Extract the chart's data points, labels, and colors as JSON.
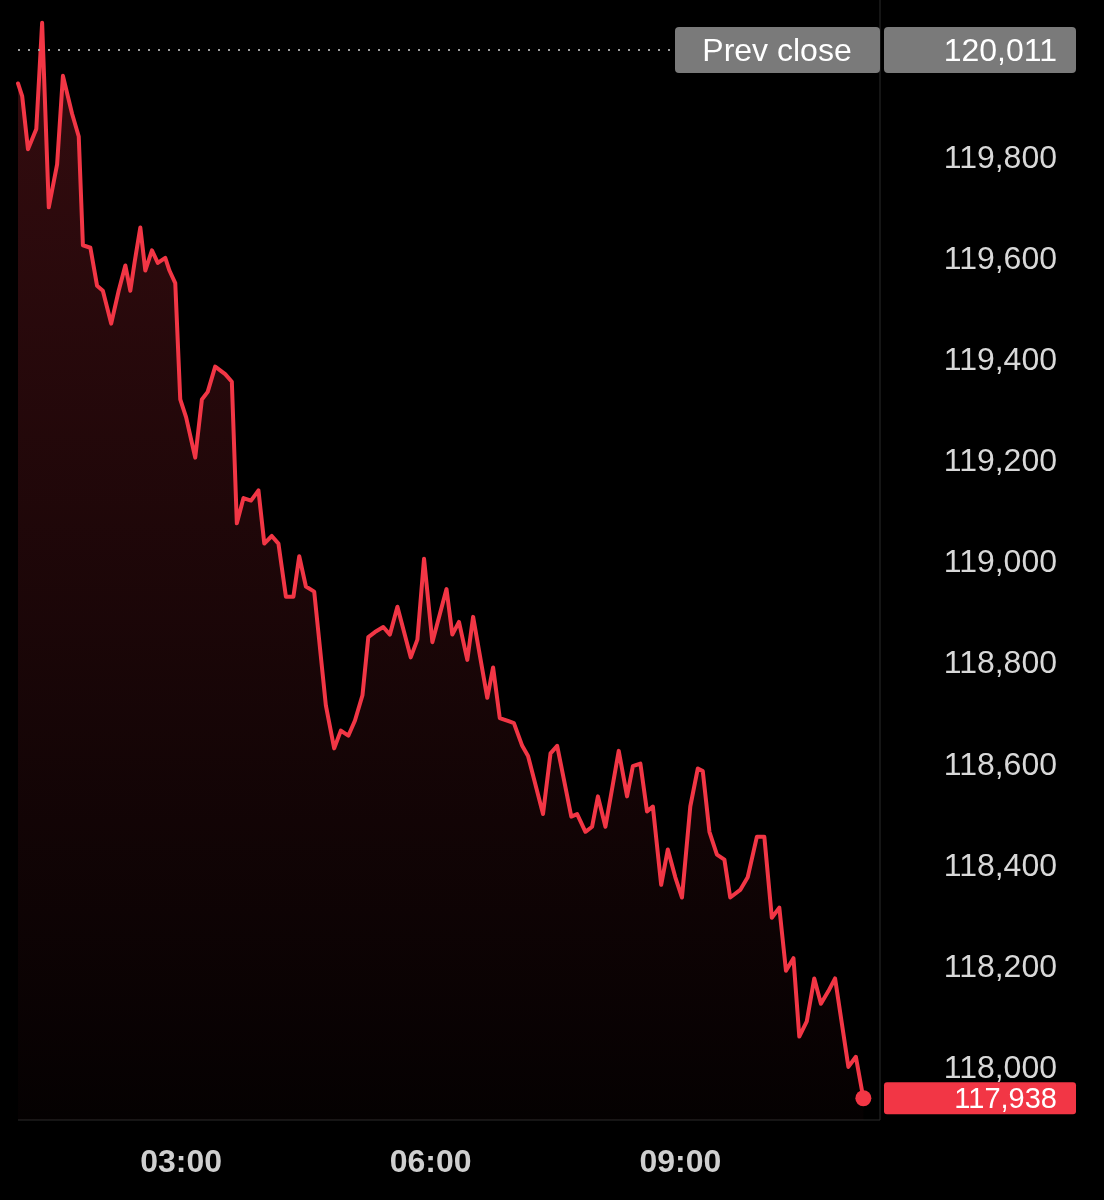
{
  "chart_data": {
    "type": "area",
    "xlim": [
      1.04,
      11.4
    ],
    "ylim": [
      117895,
      120110
    ],
    "xticks": [
      {
        "value": 3,
        "label": "03:00"
      },
      {
        "value": 6,
        "label": "06:00"
      },
      {
        "value": 9,
        "label": "09:00"
      }
    ],
    "yticks": [
      {
        "value": 118000,
        "label": "118,000"
      },
      {
        "value": 118200,
        "label": "118,200"
      },
      {
        "value": 118400,
        "label": "118,400"
      },
      {
        "value": 118600,
        "label": "118,600"
      },
      {
        "value": 118800,
        "label": "118,800"
      },
      {
        "value": 119000,
        "label": "119,000"
      },
      {
        "value": 119200,
        "label": "119,200"
      },
      {
        "value": 119400,
        "label": "119,400"
      },
      {
        "value": 119600,
        "label": "119,600"
      },
      {
        "value": 119800,
        "label": "119,800"
      }
    ],
    "grid": false,
    "marker": "none",
    "line_style": "solid",
    "series": [
      {
        "color": "#f23645",
        "x": [
          1.04,
          1.09,
          1.16,
          1.26,
          1.33,
          1.41,
          1.51,
          1.58,
          1.69,
          1.77,
          1.82,
          1.91,
          1.99,
          2.06,
          2.16,
          2.25,
          2.33,
          2.39,
          2.44,
          2.51,
          2.57,
          2.65,
          2.72,
          2.81,
          2.86,
          2.93,
          2.99,
          3.06,
          3.17,
          3.25,
          3.32,
          3.41,
          3.53,
          3.61,
          3.67,
          3.75,
          3.84,
          3.93,
          4.0,
          4.09,
          4.17,
          4.26,
          4.35,
          4.42,
          4.5,
          4.6,
          4.74,
          4.84,
          4.92,
          5.01,
          5.09,
          5.18,
          5.25,
          5.33,
          5.43,
          5.51,
          5.6,
          5.76,
          5.84,
          5.92,
          6.02,
          6.19,
          6.26,
          6.34,
          6.44,
          6.51,
          6.68,
          6.75,
          6.83,
          7.0,
          7.1,
          7.17,
          7.35,
          7.44,
          7.52,
          7.69,
          7.76,
          7.86,
          7.94,
          8.01,
          8.1,
          8.26,
          8.36,
          8.43,
          8.52,
          8.6,
          8.67,
          8.77,
          8.85,
          8.94,
          9.02,
          9.12,
          9.21,
          9.27,
          9.35,
          9.44,
          9.53,
          9.6,
          9.72,
          9.81,
          9.92,
          10.01,
          10.1,
          10.19,
          10.27,
          10.36,
          10.43,
          10.52,
          10.61,
          10.69,
          10.78,
          10.86,
          11.02,
          11.11,
          11.2
        ],
        "values": [
          119945,
          119920,
          119815,
          119855,
          120065,
          119700,
          119785,
          119960,
          119885,
          119840,
          119625,
          119620,
          119545,
          119535,
          119470,
          119535,
          119585,
          119535,
          119590,
          119660,
          119575,
          119615,
          119590,
          119600,
          119575,
          119550,
          119320,
          119285,
          119205,
          119320,
          119335,
          119385,
          119370,
          119355,
          119075,
          119125,
          119120,
          119140,
          119035,
          119050,
          119035,
          118930,
          118930,
          119010,
          118950,
          118940,
          118715,
          118630,
          118665,
          118655,
          118685,
          118735,
          118850,
          118860,
          118870,
          118855,
          118910,
          118810,
          118845,
          119005,
          118840,
          118945,
          118855,
          118880,
          118805,
          118890,
          118730,
          118790,
          118690,
          118680,
          118635,
          118615,
          118500,
          118620,
          118635,
          118495,
          118500,
          118465,
          118475,
          118535,
          118475,
          118625,
          118535,
          118595,
          118600,
          118505,
          118515,
          118360,
          118430,
          118375,
          118335,
          118515,
          118590,
          118585,
          118465,
          118420,
          118410,
          118335,
          118350,
          118375,
          118455,
          118455,
          118295,
          118315,
          118190,
          118215,
          118060,
          118090,
          118175,
          118125,
          118150,
          118175,
          118000,
          118020,
          117938
        ]
      }
    ],
    "ref_lines": [
      {
        "axis": "y",
        "value": 120011,
        "label": "Prev close",
        "line_style": "dotted",
        "color": "#9e9e9e"
      }
    ],
    "annotations": [
      "120,011",
      "117,938"
    ]
  }
}
